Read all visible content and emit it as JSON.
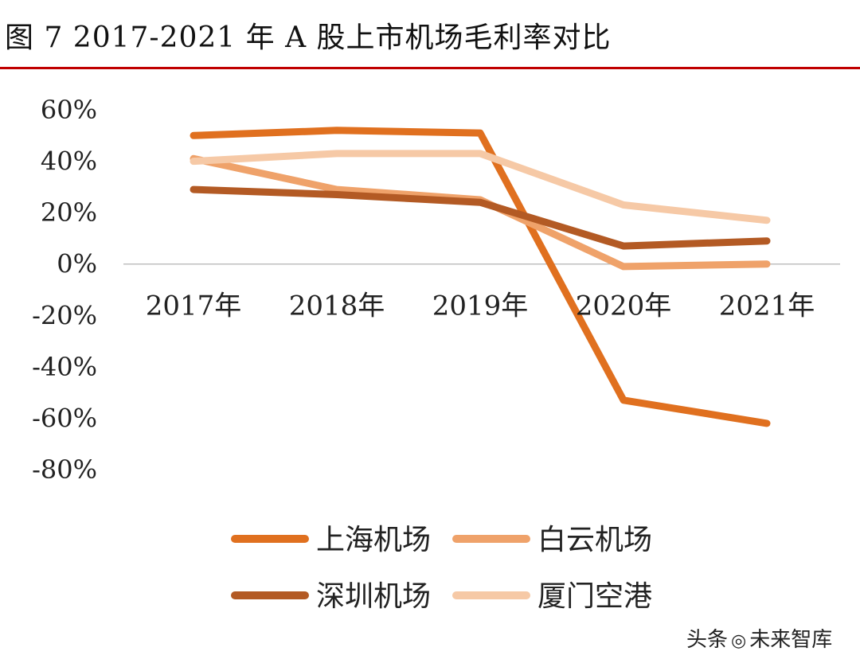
{
  "figure": {
    "title": "图  7 2017-2021 年 A 股上市机场毛利率对比",
    "colors": {
      "title_rule": "#c00000"
    }
  },
  "watermark": {
    "prefix": "头条",
    "icon": "wechat-icon",
    "text": "未来智库"
  },
  "chart_data": {
    "type": "line",
    "title": "",
    "xlabel": "",
    "ylabel": "",
    "categories": [
      "2017年",
      "2018年",
      "2019年",
      "2020年",
      "2021年"
    ],
    "ylim": [
      -0.8,
      0.6
    ],
    "yticks": [
      0.6,
      0.4,
      0.2,
      0.0,
      -0.2,
      -0.4,
      -0.6,
      -0.8
    ],
    "ytick_labels": [
      "60%",
      "40%",
      "20%",
      "0%",
      "-20%",
      "-40%",
      "-60%",
      "-80%"
    ],
    "grid": false,
    "zero_line": true,
    "legend_position": "bottom",
    "series": [
      {
        "name": "上海机场",
        "color": "#e0701f",
        "values": [
          0.5,
          0.52,
          0.51,
          -0.53,
          -0.62
        ]
      },
      {
        "name": "白云机场",
        "color": "#efa26a",
        "values": [
          0.41,
          0.29,
          0.25,
          -0.01,
          0.0
        ]
      },
      {
        "name": "深圳机场",
        "color": "#b35a24",
        "values": [
          0.29,
          0.27,
          0.24,
          0.07,
          0.09
        ]
      },
      {
        "name": "厦门空港",
        "color": "#f6c9a6",
        "values": [
          0.4,
          0.43,
          0.43,
          0.23,
          0.17
        ]
      }
    ]
  }
}
